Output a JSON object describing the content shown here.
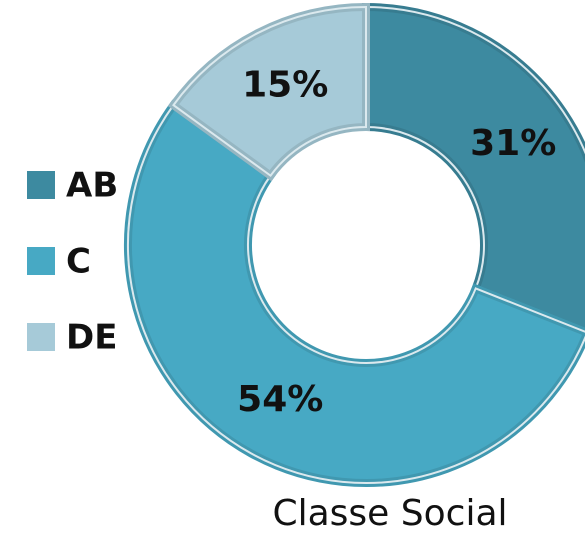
{
  "chart_data": {
    "type": "pie",
    "donut": true,
    "title": "Classe Social",
    "categories": [
      "AB",
      "C",
      "DE"
    ],
    "values": [
      31,
      54,
      15
    ],
    "value_labels": [
      "31%",
      "54%",
      "15%"
    ],
    "colors": [
      "#3d8aa0",
      "#47a9c4",
      "#a6cad8"
    ],
    "legend": "left"
  }
}
